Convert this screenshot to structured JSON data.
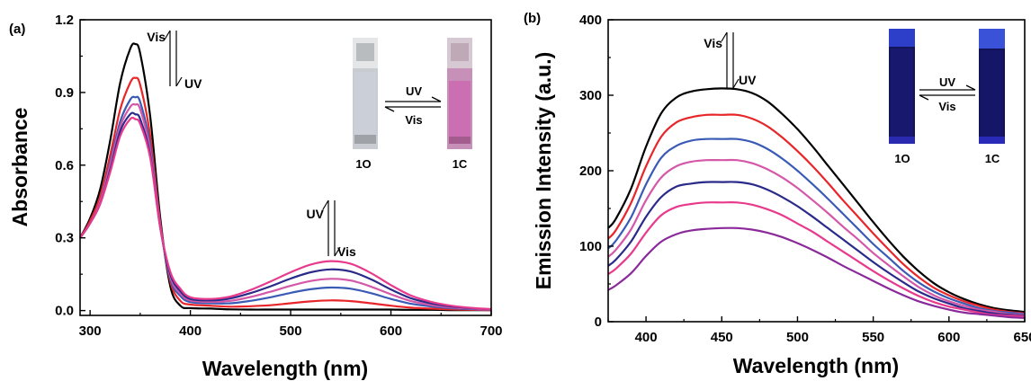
{
  "chart_data": [
    {
      "panel": "(a)",
      "type": "line",
      "xlabel": "Wavelength (nm)",
      "ylabel": "Absorbance",
      "xlim": [
        290,
        700
      ],
      "ylim": [
        -0.02,
        1.2
      ],
      "xticks": [
        300,
        400,
        500,
        600,
        700
      ],
      "yticks": [
        "0.0",
        "0.3",
        "0.6",
        "0.9",
        "1.2"
      ],
      "grid": false,
      "legend": "none",
      "annotations": [
        {
          "upper": "Vis",
          "lower": "UV"
        },
        {
          "upper": "UV",
          "lower": "Vis"
        }
      ],
      "inset": {
        "left_label": "1O",
        "right_label": "1C",
        "arrow_top": "UV",
        "arrow_bottom": "Vis"
      },
      "x": [
        290,
        300,
        310,
        320,
        330,
        340,
        345,
        350,
        360,
        370,
        380,
        390,
        400,
        420,
        440,
        460,
        480,
        500,
        520,
        540,
        560,
        580,
        600,
        620,
        640,
        660,
        680,
        700
      ],
      "series": [
        {
          "color": "#000000",
          "values": [
            0.3,
            0.38,
            0.5,
            0.7,
            0.94,
            1.08,
            1.1,
            1.06,
            0.8,
            0.38,
            0.1,
            0.02,
            0.01,
            0.008,
            0.005,
            0.004,
            0.004,
            0.004,
            0.004,
            0.004,
            0.004,
            0.004,
            0.004,
            0.003,
            0.003,
            0.002,
            0.002,
            0.002
          ]
        },
        {
          "color": "#e8262a",
          "values": [
            0.3,
            0.37,
            0.47,
            0.64,
            0.83,
            0.94,
            0.96,
            0.93,
            0.72,
            0.36,
            0.12,
            0.04,
            0.025,
            0.02,
            0.016,
            0.018,
            0.022,
            0.03,
            0.038,
            0.042,
            0.039,
            0.03,
            0.02,
            0.012,
            0.008,
            0.005,
            0.003,
            0.002
          ]
        },
        {
          "color": "#3a5bb5",
          "values": [
            0.3,
            0.36,
            0.45,
            0.61,
            0.78,
            0.87,
            0.88,
            0.86,
            0.68,
            0.35,
            0.13,
            0.06,
            0.035,
            0.03,
            0.03,
            0.04,
            0.055,
            0.073,
            0.088,
            0.095,
            0.09,
            0.072,
            0.048,
            0.028,
            0.017,
            0.01,
            0.006,
            0.003
          ]
        },
        {
          "color": "#d458a8",
          "values": [
            0.3,
            0.36,
            0.45,
            0.6,
            0.76,
            0.84,
            0.85,
            0.83,
            0.66,
            0.35,
            0.14,
            0.07,
            0.042,
            0.036,
            0.04,
            0.056,
            0.078,
            0.102,
            0.122,
            0.131,
            0.124,
            0.099,
            0.067,
            0.039,
            0.023,
            0.013,
            0.008,
            0.004
          ]
        },
        {
          "color": "#2a2a8a",
          "values": [
            0.3,
            0.36,
            0.44,
            0.58,
            0.74,
            0.81,
            0.81,
            0.79,
            0.64,
            0.34,
            0.15,
            0.08,
            0.048,
            0.042,
            0.05,
            0.072,
            0.1,
            0.132,
            0.158,
            0.17,
            0.161,
            0.129,
            0.087,
            0.051,
            0.03,
            0.017,
            0.01,
            0.005
          ]
        },
        {
          "color": "#e83a8c",
          "values": [
            0.3,
            0.36,
            0.44,
            0.57,
            0.72,
            0.79,
            0.79,
            0.77,
            0.63,
            0.34,
            0.16,
            0.09,
            0.055,
            0.048,
            0.058,
            0.085,
            0.12,
            0.158,
            0.19,
            0.204,
            0.193,
            0.155,
            0.105,
            0.062,
            0.036,
            0.02,
            0.011,
            0.006
          ]
        }
      ]
    },
    {
      "panel": "(b)",
      "type": "line",
      "xlabel": "Wavelength (nm)",
      "ylabel": "Emission Intensity (a.u.)",
      "xlim": [
        375,
        650
      ],
      "ylim": [
        0,
        400
      ],
      "xticks": [
        400,
        450,
        500,
        550,
        600,
        650
      ],
      "yticks": [
        "0",
        "100",
        "200",
        "300",
        "400"
      ],
      "grid": false,
      "legend": "none",
      "annotations": [
        {
          "upper": "Vis",
          "lower": "UV"
        }
      ],
      "inset": {
        "left_label": "1O",
        "right_label": "1C",
        "arrow_top": "UV",
        "arrow_bottom": "Vis"
      },
      "x": [
        375,
        380,
        390,
        400,
        410,
        420,
        430,
        440,
        450,
        460,
        470,
        480,
        490,
        500,
        510,
        520,
        530,
        540,
        550,
        560,
        570,
        580,
        590,
        600,
        610,
        620,
        630,
        640,
        650
      ],
      "series": [
        {
          "color": "#000000",
          "values": [
            124,
            136,
            176,
            232,
            276,
            297,
            305,
            308,
            309,
            308,
            303,
            292,
            275,
            255,
            232,
            207,
            182,
            157,
            132,
            108,
            86,
            67,
            51,
            39,
            30,
            23,
            18,
            15,
            13
          ]
        },
        {
          "color": "#e8262a",
          "values": [
            110,
            121,
            157,
            206,
            245,
            264,
            271,
            274,
            274,
            274,
            269,
            259,
            244,
            226,
            206,
            184,
            161,
            139,
            117,
            96,
            76,
            59,
            45,
            35,
            27,
            21,
            16,
            13,
            11
          ]
        },
        {
          "color": "#3a5bb5",
          "values": [
            97,
            107,
            138,
            182,
            217,
            233,
            240,
            242,
            242,
            242,
            238,
            229,
            216,
            200,
            182,
            163,
            143,
            123,
            103,
            85,
            67,
            52,
            40,
            31,
            24,
            18,
            14,
            12,
            10
          ]
        },
        {
          "color": "#d458a8",
          "values": [
            86,
            95,
            122,
            161,
            191,
            206,
            212,
            214,
            214,
            214,
            210,
            202,
            191,
            177,
            161,
            144,
            126,
            109,
            91,
            75,
            60,
            46,
            35,
            27,
            21,
            16,
            13,
            10,
            9
          ]
        },
        {
          "color": "#2a2a8a",
          "values": [
            74,
            82,
            106,
            139,
            165,
            179,
            183,
            185,
            185,
            185,
            182,
            175,
            165,
            153,
            139,
            124,
            109,
            94,
            79,
            65,
            52,
            40,
            31,
            24,
            18,
            14,
            11,
            9,
            8
          ]
        },
        {
          "color": "#e83a8c",
          "values": [
            63,
            70,
            90,
            118,
            141,
            152,
            156,
            158,
            158,
            158,
            155,
            149,
            141,
            130,
            119,
            106,
            93,
            80,
            67,
            55,
            44,
            34,
            26,
            20,
            16,
            12,
            9,
            8,
            7
          ]
        },
        {
          "color": "#8a2a9a",
          "values": [
            42,
            48,
            64,
            87,
            106,
            116,
            121,
            123,
            124,
            124,
            122,
            118,
            112,
            104,
            95,
            85,
            74,
            64,
            54,
            44,
            35,
            27,
            21,
            16,
            12,
            10,
            8,
            6,
            5
          ]
        }
      ]
    }
  ]
}
